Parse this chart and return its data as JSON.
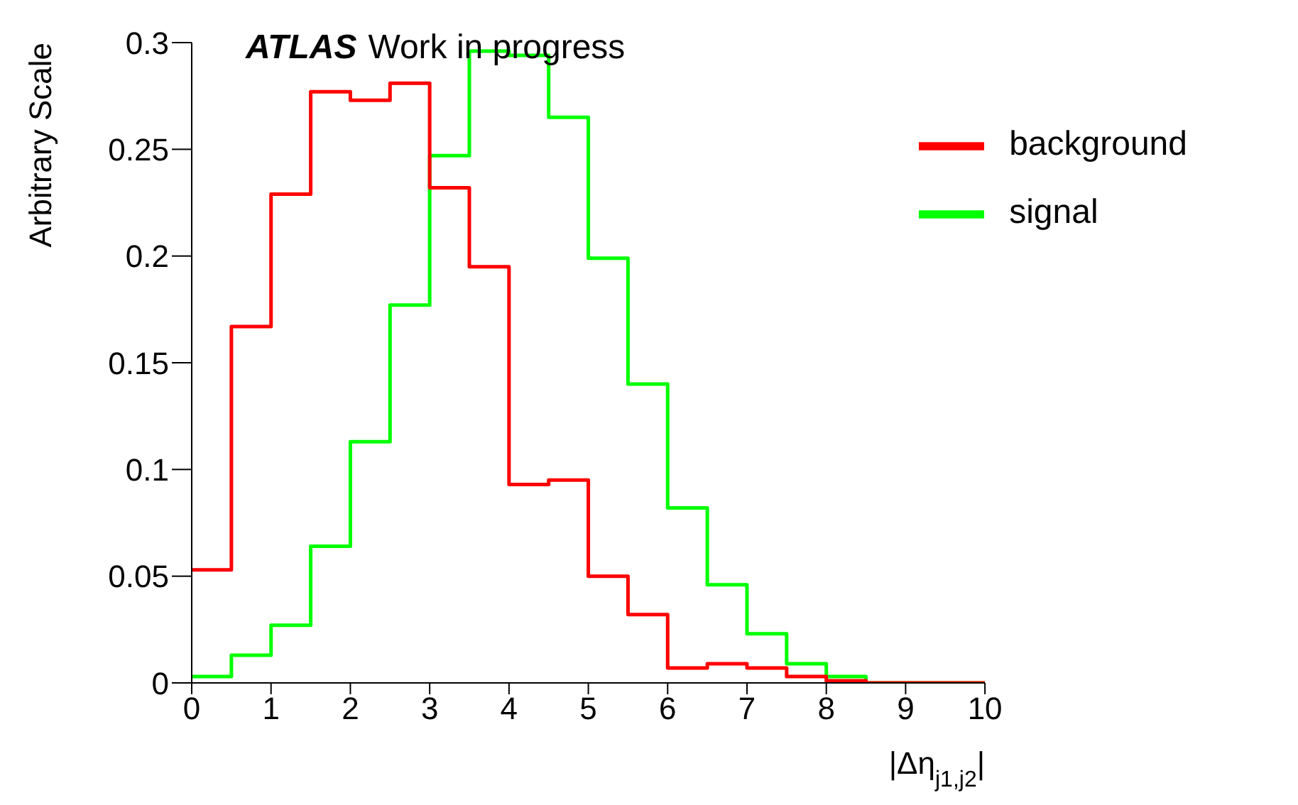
{
  "chart_data": {
    "type": "histogram",
    "xlabel": "|Δη$_{j1,j2}$|",
    "ylabel": "Arbitrary Scale",
    "annotations": [
      "ATLAS",
      "Work in progress"
    ],
    "bins": [
      0,
      0.5,
      1,
      1.5,
      2,
      2.5,
      3,
      3.5,
      4,
      4.5,
      5,
      5.5,
      6,
      6.5,
      7,
      7.5,
      8,
      8.5,
      9,
      9.5,
      10
    ],
    "series": [
      {
        "name": "signal",
        "color": "#00ff00",
        "values": [
          0.003,
          0.013,
          0.027,
          0.064,
          0.113,
          0.177,
          0.247,
          0.296,
          0.294,
          0.265,
          0.199,
          0.14,
          0.082,
          0.046,
          0.023,
          0.009,
          0.003,
          0,
          0,
          0
        ]
      },
      {
        "name": "background",
        "color": "#ff0000",
        "values": [
          0.053,
          0.167,
          0.229,
          0.277,
          0.273,
          0.281,
          0.232,
          0.195,
          0.093,
          0.095,
          0.05,
          0.032,
          0.007,
          0.009,
          0.007,
          0.003,
          0.001,
          0,
          0,
          0
        ]
      }
    ],
    "xlim": [
      0,
      10
    ],
    "xticks": [
      0,
      1,
      2,
      3,
      4,
      5,
      6,
      7,
      8,
      9,
      10
    ],
    "ylim": [
      0,
      0.3
    ],
    "yticks": [
      0,
      0.05,
      0.1,
      0.15,
      0.2,
      0.25,
      0.3
    ],
    "legend": "top right",
    "grid": false
  }
}
